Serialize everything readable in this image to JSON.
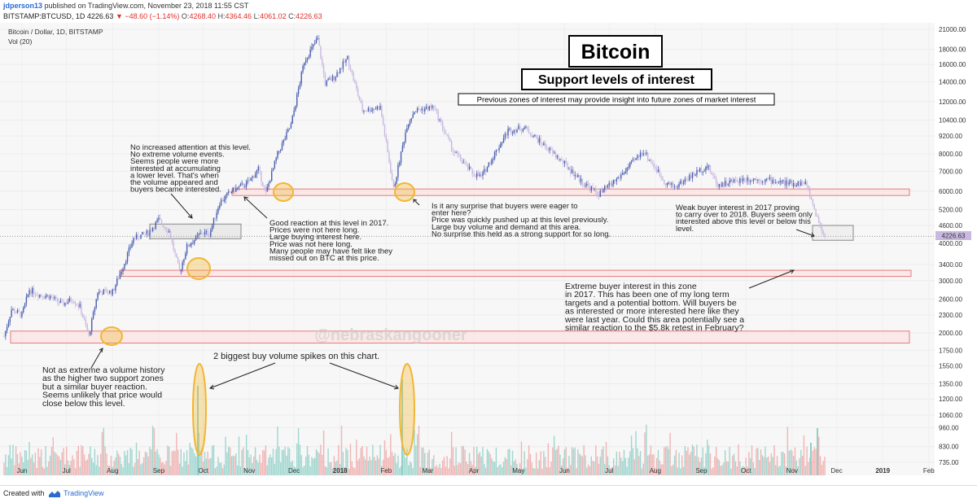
{
  "header": {
    "username": "jdperson13",
    "published_text": "published on TradingView.com, November 23, 2018 11:55 CST",
    "symbol": "BITSTAMP:BTCUSD, 1D",
    "last": "4226.63",
    "change": "▼ −48.60 (−1.14%)",
    "o_label": "O:",
    "o_value": "4268.40",
    "h_label": "H:",
    "h_value": "4364.46",
    "l_label": "L:",
    "l_value": "4061.02",
    "c_label": "C:",
    "c_value": "4226.63"
  },
  "chart_title": "Bitcoin / Dollar, 1D, BITSTAMP",
  "vol_label": "Vol (20)",
  "title_box": "Bitcoin",
  "subtitle_box": "Support levels of interest",
  "note_box": "Previous zones of interest may provide insight into future zones of market interest",
  "watermark": "@nebraskangooner",
  "annotations": {
    "a1": [
      "No increased attention at this level.",
      "No extreme volume events.",
      "Seems people were more",
      "interested at accumulating",
      "a lower level. That's when",
      "the volume appeared and",
      "buyers became interested."
    ],
    "a2": [
      "Good reaction at this level in 2017.",
      "Prices were not here long.",
      "Large buying interest here.",
      "Price was not here long.",
      "Many people may have felt like they",
      "missed out on BTC at this price."
    ],
    "a3": [
      "Is it any surprise that buyers were eager to",
      "enter here?",
      "Price was quickly pushed up at this level previously.",
      "Large buy volume and demand at this area.",
      "No surprise this held as a strong support for so long."
    ],
    "a4": [
      "Weak buyer interest in 2017 proving",
      "to carry over to 2018. Buyers seem only",
      "interested above this level or below this",
      "level."
    ],
    "a5": [
      "Extreme buyer interest in this zone",
      "in 2017. This has been one of my long term",
      "targets and a potential bottom. Will buyers be",
      "as interested or more interested here like they",
      "were last year. Could this area potentially see a",
      "similar reaction to the $5.8k retest in February?"
    ],
    "a6": [
      "Not as extreme a volume history",
      "as the higher two support zones",
      "but a similar buyer reaction.",
      "Seems unlikely that price would",
      "close below this level."
    ],
    "a7": "2 biggest buy volume spikes on this chart."
  },
  "current_price_label": "4226.63",
  "footer": {
    "created_with": "Created with",
    "brand": "TradingView"
  },
  "colors": {
    "up": "#4a5fb0",
    "down": "#c9b9e0",
    "zone_fill": "#fbe3e3",
    "zone_stroke": "#e57b7b",
    "circle": "#f2b632",
    "vol_up": "#8fd0c8",
    "vol_down": "#f0a8a8"
  },
  "chart_data": {
    "type": "candlestick",
    "title": "Bitcoin / Dollar, 1D, BITSTAMP",
    "y_scale": "log",
    "y_ticks": [
      735,
      830,
      960,
      1060,
      1200,
      1350,
      1550,
      1750,
      2000,
      2300,
      2600,
      3000,
      3400,
      4000,
      4600,
      5200,
      6000,
      7000,
      8000,
      9200,
      10400,
      12000,
      14000,
      16000,
      18000,
      21000
    ],
    "y_tick_labels": [
      "735.00",
      "830.00",
      "960.00",
      "1060.00",
      "1200.00",
      "1350.00",
      "1550.00",
      "1750.00",
      "2000.00",
      "2300.00",
      "2600.00",
      "3000.00",
      "3400.00",
      "4000.00",
      "4600.00",
      "5200.00",
      "6000.00",
      "7000.00",
      "8000.00",
      "9200.00",
      "10400.00",
      "12000.00",
      "14000.00",
      "16000.00",
      "18000.00",
      "21000.00"
    ],
    "x_ticks": [
      "Jun",
      "Jul",
      "Aug",
      "Sep",
      "Oct",
      "Nov",
      "Dec",
      "2018",
      "Feb",
      "Mar",
      "Apr",
      "May",
      "Jun",
      "Jul",
      "Aug",
      "Sep",
      "Oct",
      "Nov",
      "Dec",
      "2019",
      "Feb"
    ],
    "price_path": [
      [
        "2017-05-20",
        1950
      ],
      [
        "2017-05-25",
        2400
      ],
      [
        "2017-06-01",
        2300
      ],
      [
        "2017-06-06",
        2800
      ],
      [
        "2017-06-12",
        2700
      ],
      [
        "2017-06-20",
        2650
      ],
      [
        "2017-06-28",
        2500
      ],
      [
        "2017-07-05",
        2600
      ],
      [
        "2017-07-10",
        2450
      ],
      [
        "2017-07-16",
        1950
      ],
      [
        "2017-07-22",
        2750
      ],
      [
        "2017-08-01",
        2750
      ],
      [
        "2017-08-08",
        3350
      ],
      [
        "2017-08-15",
        4150
      ],
      [
        "2017-08-25",
        4350
      ],
      [
        "2017-09-01",
        4800
      ],
      [
        "2017-09-08",
        4400
      ],
      [
        "2017-09-15",
        3200
      ],
      [
        "2017-09-20",
        3900
      ],
      [
        "2017-09-30",
        4350
      ],
      [
        "2017-10-05",
        4300
      ],
      [
        "2017-10-12",
        5500
      ],
      [
        "2017-10-20",
        6000
      ],
      [
        "2017-10-31",
        6400
      ],
      [
        "2017-11-07",
        7100
      ],
      [
        "2017-11-12",
        5900
      ],
      [
        "2017-11-20",
        8000
      ],
      [
        "2017-11-29",
        10000
      ],
      [
        "2017-12-08",
        16500
      ],
      [
        "2017-12-17",
        19500
      ],
      [
        "2017-12-22",
        13800
      ],
      [
        "2017-12-28",
        14500
      ],
      [
        "2018-01-06",
        16800
      ],
      [
        "2018-01-16",
        11200
      ],
      [
        "2018-01-28",
        11500
      ],
      [
        "2018-02-06",
        6100
      ],
      [
        "2018-02-15",
        10000
      ],
      [
        "2018-02-20",
        11200
      ],
      [
        "2018-03-05",
        11500
      ],
      [
        "2018-03-18",
        8200
      ],
      [
        "2018-03-31",
        6900
      ],
      [
        "2018-04-06",
        6700
      ],
      [
        "2018-04-24",
        9600
      ],
      [
        "2018-05-05",
        9800
      ],
      [
        "2018-05-20",
        8400
      ],
      [
        "2018-05-31",
        7500
      ],
      [
        "2018-06-12",
        6500
      ],
      [
        "2018-06-24",
        5850
      ],
      [
        "2018-07-08",
        6700
      ],
      [
        "2018-07-24",
        8200
      ],
      [
        "2018-08-08",
        6400
      ],
      [
        "2018-08-14",
        6200
      ],
      [
        "2018-08-30",
        7000
      ],
      [
        "2018-09-05",
        7300
      ],
      [
        "2018-09-12",
        6300
      ],
      [
        "2018-09-30",
        6600
      ],
      [
        "2018-10-15",
        6550
      ],
      [
        "2018-10-31",
        6350
      ],
      [
        "2018-11-10",
        6400
      ],
      [
        "2018-11-14",
        5600
      ],
      [
        "2018-11-19",
        4700
      ],
      [
        "2018-11-23",
        4226.63
      ]
    ],
    "support_zones": [
      {
        "low": 5800,
        "high": 6100
      },
      {
        "low": 3100,
        "high": 3250
      },
      {
        "low": 1850,
        "high": 2030
      },
      {
        "low": 4100,
        "high": 4600
      }
    ],
    "last_price": 4226.63
  }
}
